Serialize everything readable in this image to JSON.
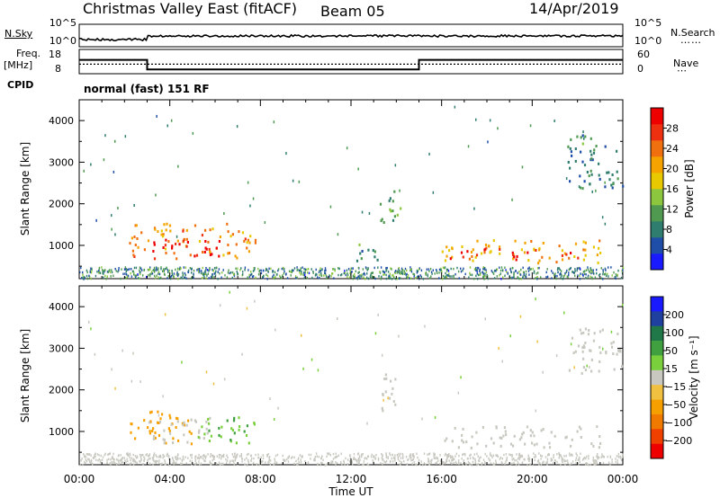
{
  "header": {
    "radar": "Christmas Valley East (fitACF)",
    "beam": "Beam 05",
    "date": "14/Apr/2019"
  },
  "side_labels": {
    "nsky": "N.Sky",
    "nsearch": "N.Search",
    "freq_line1": "Freq.",
    "freq_line2": "[MHz]",
    "nave": "Nave",
    "cpid": "CPID",
    "cpid_value": "normal (fast) 151 RF"
  },
  "colors": {
    "power_scale": [
      "#1a1aff",
      "#1f4ea8",
      "#2e7d6e",
      "#4f9a50",
      "#8cc63f",
      "#e8c800",
      "#f5a300",
      "#f07010",
      "#ee3010",
      "#ee0000"
    ],
    "velocity_scale": [
      "#ee0000",
      "#f04000",
      "#f07a00",
      "#f5a000",
      "#f0c040",
      "#c8c8c0",
      "#7ad03c",
      "#40a040",
      "#207848",
      "#2040a0",
      "#1a1aff"
    ]
  },
  "chart_data": [
    {
      "type": "line",
      "name": "noise-panel",
      "y_tick_labels": [
        "10^5",
        "10^0"
      ],
      "right_tick_labels": [
        "10^5",
        "10^0"
      ],
      "left_label": "N.Sky",
      "right_label": "N.Search"
    },
    {
      "type": "line",
      "name": "freq-panel",
      "y_ticks_left": [
        18,
        8
      ],
      "y_ticks_right": [
        60,
        0
      ],
      "step_x": [
        0,
        3,
        3,
        15,
        15,
        24
      ],
      "step_y": [
        14,
        14,
        8.5,
        8.5,
        14,
        14
      ],
      "nave_level": 11.5,
      "left_label": "Freq. [MHz]",
      "right_label": "Nave"
    },
    {
      "type": "heatmap",
      "name": "power-panel",
      "ylabel": "Slant Range [km]",
      "ylim": [
        200,
        4500
      ],
      "yticks": [
        1000,
        2000,
        3000,
        4000
      ],
      "xlim": [
        0,
        24
      ],
      "colorbar": {
        "label": "Power [dB]",
        "range": [
          0,
          32
        ],
        "ticks": [
          4,
          8,
          12,
          16,
          20,
          24,
          28
        ]
      },
      "clusters": [
        {
          "x0": 2.2,
          "x1": 7.8,
          "y0": 700,
          "y1": 1550,
          "value": 22
        },
        {
          "x0": 3.2,
          "x1": 6.2,
          "y0": 750,
          "y1": 1200,
          "value": 29
        },
        {
          "x0": 13.2,
          "x1": 14.2,
          "y0": 1500,
          "y1": 2400,
          "value": 10
        },
        {
          "x0": 11.8,
          "x1": 13.2,
          "y0": 600,
          "y1": 1050,
          "value": 10
        },
        {
          "x0": 16.0,
          "x1": 23.0,
          "y0": 600,
          "y1": 1150,
          "value": 20
        },
        {
          "x0": 16.3,
          "x1": 18.0,
          "y0": 700,
          "y1": 950,
          "value": 30
        },
        {
          "x0": 18.5,
          "x1": 20.2,
          "y0": 650,
          "y1": 950,
          "value": 29
        },
        {
          "x0": 20.8,
          "x1": 22.0,
          "y0": 620,
          "y1": 880,
          "value": 29
        },
        {
          "x0": 21.5,
          "x1": 24.0,
          "y0": 2400,
          "y1": 3700,
          "value": 9
        }
      ]
    },
    {
      "type": "heatmap",
      "name": "velocity-panel",
      "ylabel": "Slant Range [km]",
      "xlabel": "Time UT",
      "ylim": [
        200,
        4500
      ],
      "yticks": [
        1000,
        2000,
        3000,
        4000
      ],
      "xlim": [
        0,
        24
      ],
      "xticks": [
        "00:00",
        "04:00",
        "08:00",
        "12:00",
        "16:00",
        "20:00",
        "00:00"
      ],
      "colorbar": {
        "label": "Velocity [m s⁻¹]",
        "ticks": [
          200,
          100,
          50,
          15,
          -15,
          -50,
          -100,
          -200
        ]
      },
      "clusters": [
        {
          "x0": 2.2,
          "x1": 5.0,
          "y0": 700,
          "y1": 1550,
          "value": -40
        },
        {
          "x0": 3.0,
          "x1": 5.8,
          "y0": 750,
          "y1": 1350,
          "value": 0
        },
        {
          "x0": 5.0,
          "x1": 7.8,
          "y0": 750,
          "y1": 1400,
          "value": 30
        },
        {
          "x0": 13.2,
          "x1": 14.2,
          "y0": 1500,
          "y1": 2400,
          "value": 0
        },
        {
          "x0": 16.0,
          "x1": 23.0,
          "y0": 600,
          "y1": 1150,
          "value": 0
        },
        {
          "x0": 21.5,
          "x1": 24.0,
          "y0": 2400,
          "y1": 3500,
          "value": 0
        }
      ]
    }
  ]
}
